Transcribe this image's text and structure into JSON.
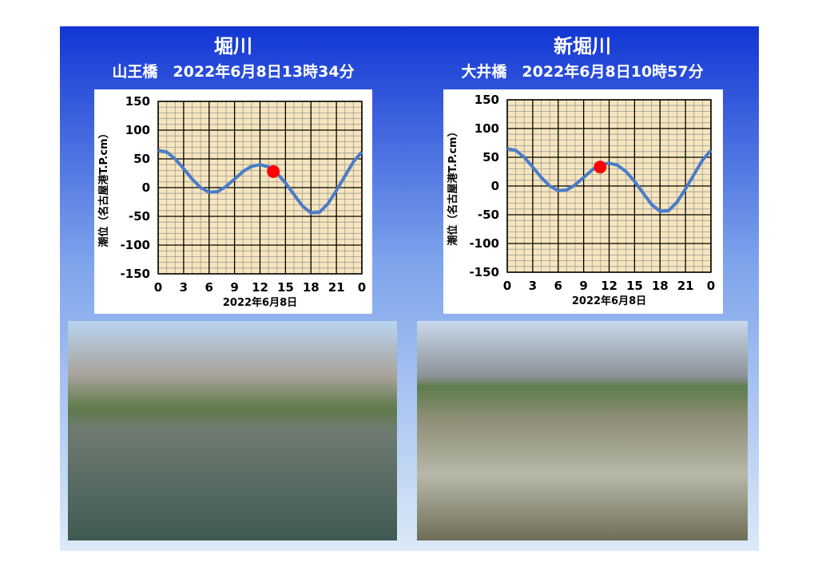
{
  "chart_data": [
    {
      "type": "line",
      "title": "堀川",
      "subtitle": "山王橋　2022年6月8日13時34分",
      "xlabel": "2022年6月8日",
      "ylabel": "潮位（名古屋港T.P.cm）",
      "x": [
        0,
        1,
        2,
        3,
        4,
        5,
        6,
        7,
        8,
        9,
        10,
        11,
        12,
        13,
        14,
        15,
        16,
        17,
        18,
        19,
        20,
        21,
        22,
        23,
        24
      ],
      "series": [
        {
          "color": "#4a7cc8",
          "values": [
            65,
            62,
            50,
            33,
            15,
            0,
            -8,
            -7,
            2,
            15,
            28,
            37,
            40,
            36,
            25,
            8,
            -12,
            -32,
            -44,
            -43,
            -28,
            -5,
            20,
            45,
            62
          ]
        }
      ],
      "point": {
        "x": 13.57,
        "y": 28,
        "color": "#ff0000"
      },
      "xlim": [
        0,
        24
      ],
      "xticks": [
        0,
        3,
        6,
        9,
        12,
        15,
        18,
        21,
        {
          "value": 24,
          "label": "0"
        }
      ],
      "ylim": [
        -150,
        150
      ],
      "yticks": [
        -150,
        -100,
        -50,
        0,
        50,
        100,
        150
      ],
      "grid": true
    },
    {
      "type": "line",
      "title": "新堀川",
      "subtitle": "大井橋　2022年6月8日10時57分",
      "xlabel": "2022年6月8日",
      "ylabel": "潮位（名古屋港T.P.cm）",
      "x": [
        0,
        1,
        2,
        3,
        4,
        5,
        6,
        7,
        8,
        9,
        10,
        11,
        12,
        13,
        14,
        15,
        16,
        17,
        18,
        19,
        20,
        21,
        22,
        23,
        24
      ],
      "series": [
        {
          "color": "#4a7cc8",
          "values": [
            65,
            62,
            50,
            33,
            15,
            0,
            -8,
            -7,
            2,
            15,
            28,
            37,
            40,
            36,
            25,
            8,
            -12,
            -32,
            -44,
            -43,
            -28,
            -5,
            20,
            45,
            62
          ]
        }
      ],
      "point": {
        "x": 10.95,
        "y": 33,
        "color": "#ff0000"
      },
      "xlim": [
        0,
        24
      ],
      "xticks": [
        0,
        3,
        6,
        9,
        12,
        15,
        18,
        21,
        {
          "value": 24,
          "label": "0"
        }
      ],
      "ylim": [
        -150,
        150
      ],
      "yticks": [
        -150,
        -100,
        -50,
        0,
        50,
        100,
        150
      ],
      "grid": true
    }
  ]
}
